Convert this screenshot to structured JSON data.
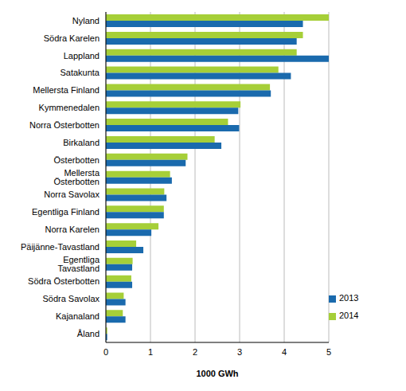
{
  "chart_data": {
    "type": "bar",
    "orientation": "horizontal",
    "x_label": "1000 GWh",
    "categories": [
      "Nyland",
      "Södra Karelen",
      "Lappland",
      "Satakunta",
      "Mellersta Finland",
      "Kymmenedalen",
      "Norra Österbotten",
      "Birkaland",
      "Österbotten",
      "Mellersta Österbotten",
      "Norra Savolax",
      "Egentliga Finland",
      "Norra Karelen",
      "Päijänne-Tavastland",
      "Egentliga Tavastland",
      "Södra Österbotten",
      "Södra Savolax",
      "Kajanaland",
      "Åland"
    ],
    "series": [
      {
        "name": "2014",
        "color": "#a6cf38",
        "values": [
          5.0,
          4.42,
          4.28,
          3.87,
          3.68,
          3.02,
          2.74,
          2.44,
          1.83,
          1.44,
          1.31,
          1.3,
          1.18,
          0.68,
          0.6,
          0.57,
          0.4,
          0.38,
          0.03
        ]
      },
      {
        "name": "2013",
        "color": "#1a6aad",
        "values": [
          4.42,
          4.28,
          5.0,
          4.15,
          3.7,
          2.97,
          2.99,
          2.59,
          1.79,
          1.48,
          1.36,
          1.3,
          1.02,
          0.84,
          0.59,
          0.59,
          0.44,
          0.44,
          0.03
        ]
      }
    ],
    "xlim": [
      0,
      5
    ],
    "xticks": [
      0,
      1,
      2,
      3,
      4,
      5
    ],
    "grid": true,
    "legend": "lower right"
  }
}
